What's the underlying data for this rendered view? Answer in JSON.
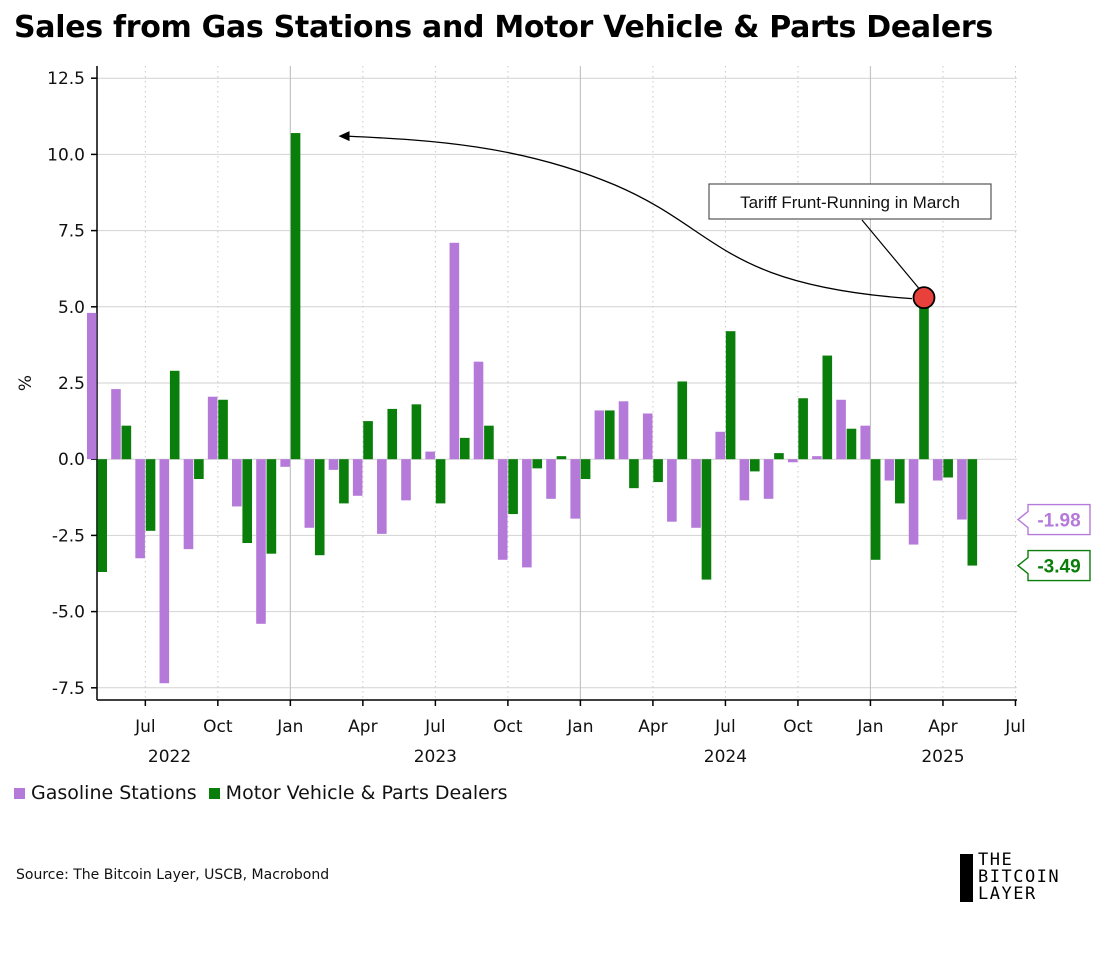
{
  "title": "Sales from Gas Stations and Motor Vehicle & Parts Dealers",
  "source": "Source: The Bitcoin Layer, USCB, Macrobond",
  "logo": {
    "line1": "THE",
    "line2": "BITCOIN",
    "line3": "LAYER"
  },
  "colors": {
    "gas": "#b57ad9",
    "motor": "#0a7e0a",
    "grid": "#cfcfcf",
    "marker": "#e8413b"
  },
  "chart_data": {
    "type": "bar",
    "title": "Sales from Gas Stations and Motor Vehicle & Parts Dealers",
    "ylabel": "%",
    "xlabel": "",
    "ylim": [
      -7.9,
      12.9
    ],
    "yticks": [
      12.5,
      10.0,
      7.5,
      5.0,
      2.5,
      0.0,
      -2.5,
      -5.0,
      -7.5
    ],
    "ytick_labels": [
      "12.5",
      "10.0",
      "7.5",
      "5.0",
      "2.5",
      "0.0",
      "-2.5",
      "-5.0",
      "-7.5"
    ],
    "x_months": [
      "2022-05",
      "2022-06",
      "2022-07",
      "2022-08",
      "2022-09",
      "2022-10",
      "2022-11",
      "2022-12",
      "2023-01",
      "2023-02",
      "2023-03",
      "2023-04",
      "2023-05",
      "2023-06",
      "2023-07",
      "2023-08",
      "2023-09",
      "2023-10",
      "2023-11",
      "2023-12",
      "2024-01",
      "2024-02",
      "2024-03",
      "2024-04",
      "2024-05",
      "2024-06",
      "2024-07",
      "2024-08",
      "2024-09",
      "2024-10",
      "2024-11",
      "2024-12",
      "2025-01",
      "2025-02",
      "2025-03",
      "2025-04",
      "2025-05"
    ],
    "xtick_labels": [
      {
        "label": "Jul",
        "month": "2022-07"
      },
      {
        "label": "Oct",
        "month": "2022-10"
      },
      {
        "label": "Jan",
        "month": "2023-01"
      },
      {
        "label": "Apr",
        "month": "2023-04"
      },
      {
        "label": "Jul",
        "month": "2023-07"
      },
      {
        "label": "Oct",
        "month": "2023-10"
      },
      {
        "label": "Jan",
        "month": "2024-01"
      },
      {
        "label": "Apr",
        "month": "2024-04"
      },
      {
        "label": "Jul",
        "month": "2024-07"
      },
      {
        "label": "Oct",
        "month": "2024-10"
      },
      {
        "label": "Jan",
        "month": "2025-01"
      },
      {
        "label": "Apr",
        "month": "2025-04"
      },
      {
        "label": "Jul",
        "month": "2025-07"
      }
    ],
    "year_labels": [
      {
        "label": "2022",
        "month": "2022-08"
      },
      {
        "label": "2023",
        "month": "2023-07"
      },
      {
        "label": "2024",
        "month": "2024-07"
      },
      {
        "label": "2025",
        "month": "2025-04"
      }
    ],
    "series": [
      {
        "name": "Gasoline Stations",
        "color": "#b57ad9",
        "values": [
          4.8,
          2.3,
          -3.25,
          -7.35,
          -2.95,
          2.05,
          -1.55,
          -5.4,
          -0.25,
          -2.25,
          -0.35,
          -1.2,
          -2.45,
          -1.35,
          0.25,
          7.1,
          3.2,
          -3.3,
          -3.55,
          -1.3,
          -1.95,
          1.6,
          1.9,
          1.5,
          -2.05,
          -2.25,
          0.9,
          -1.35,
          -1.3,
          -0.1,
          0.1,
          1.95,
          1.1,
          -0.7,
          -2.8,
          -0.7,
          -1.98
        ]
      },
      {
        "name": "Motor Vehicle & Parts Dealers",
        "color": "#0a7e0a",
        "values": [
          -3.7,
          1.1,
          -2.35,
          2.9,
          -0.65,
          1.95,
          -2.75,
          -3.1,
          10.7,
          -3.15,
          -1.45,
          1.25,
          1.65,
          1.8,
          -1.45,
          0.7,
          1.1,
          -1.8,
          -0.3,
          0.1,
          -0.65,
          1.6,
          -0.95,
          -0.75,
          2.55,
          -3.95,
          4.2,
          -0.4,
          0.2,
          2.0,
          3.4,
          1.0,
          -3.3,
          -1.45,
          5.3,
          -0.6,
          -3.49
        ]
      }
    ],
    "end_labels": [
      {
        "series": "Gasoline Stations",
        "text": "-1.98"
      },
      {
        "series": "Motor Vehicle & Parts Dealers",
        "text": "-3.49"
      }
    ],
    "annotation": {
      "text": "Tariff Frunt-Running in March",
      "marker_month": "2025-03",
      "marker_value": 5.3,
      "arrow_to_month": "2023-02",
      "arrow_to_value": 10.6
    },
    "legend": {
      "placement": "bottom-left",
      "entries": [
        "Gasoline Stations",
        "Motor Vehicle & Parts Dealers"
      ]
    },
    "grid": true
  }
}
